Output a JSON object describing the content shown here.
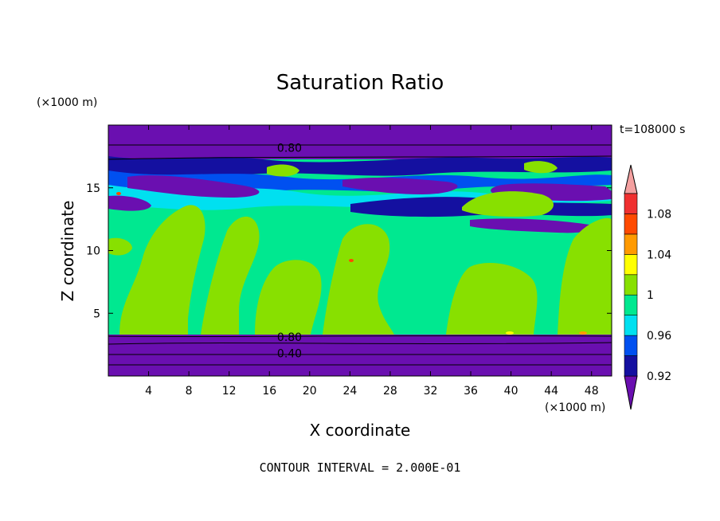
{
  "chart_data": {
    "type": "heatmap",
    "title": "Saturation Ratio",
    "xlabel": "X coordinate",
    "ylabel": "Z coordinate",
    "x_unit": "(×1000 m)",
    "y_unit": "(×1000 m)",
    "time_label": "t=108000 s",
    "contour_interval": "CONTOUR INTERVAL = 2.000E-01",
    "xlim": [
      0,
      50
    ],
    "ylim": [
      0,
      20
    ],
    "x_ticks": [
      4,
      8,
      12,
      16,
      20,
      24,
      28,
      32,
      36,
      40,
      44,
      48
    ],
    "y_ticks": [
      5,
      10,
      15
    ],
    "contour_labels": [
      {
        "text": "0.80",
        "x": 18,
        "z": 18.2
      },
      {
        "text": "0.80",
        "x": 18,
        "z": 3.1
      },
      {
        "text": "0.40",
        "x": 18,
        "z": 1.8
      }
    ],
    "colorbar": {
      "levels": [
        0.92,
        0.94,
        0.96,
        0.98,
        1.0,
        1.02,
        1.04,
        1.06,
        1.08,
        1.1
      ],
      "labels": [
        "0.92",
        "0.96",
        "1",
        "1.04",
        "1.08"
      ],
      "colors": [
        "#6a0fb0",
        "#1410a0",
        "#0050f0",
        "#00e0f0",
        "#00e890",
        "#88e000",
        "#ffff00",
        "#ff9a00",
        "#ff4a00",
        "#f03030",
        "#f4a0a0"
      ]
    }
  }
}
